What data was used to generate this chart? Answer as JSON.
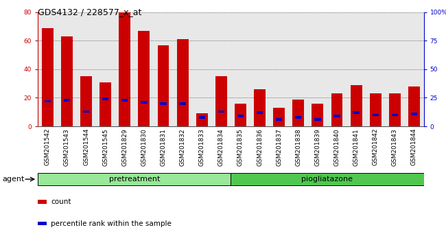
{
  "title": "GDS4132 / 228577_x_at",
  "samples": [
    "GSM201542",
    "GSM201543",
    "GSM201544",
    "GSM201545",
    "GSM201829",
    "GSM201830",
    "GSM201831",
    "GSM201832",
    "GSM201833",
    "GSM201834",
    "GSM201835",
    "GSM201836",
    "GSM201837",
    "GSM201838",
    "GSM201839",
    "GSM201840",
    "GSM201841",
    "GSM201842",
    "GSM201843",
    "GSM201844"
  ],
  "counts": [
    69,
    63,
    35,
    31,
    80,
    67,
    57,
    61,
    9,
    35,
    16,
    26,
    13,
    19,
    16,
    23,
    29,
    23,
    23,
    28
  ],
  "percentiles": [
    22,
    23,
    13,
    24,
    23,
    21,
    20,
    20,
    8,
    13,
    9,
    12,
    6,
    8,
    6,
    9,
    12,
    10,
    10,
    11
  ],
  "groups": [
    {
      "label": "pretreatment",
      "start": 0,
      "end": 10,
      "color": "#98e898"
    },
    {
      "label": "piogliatazone",
      "start": 10,
      "end": 20,
      "color": "#50c850"
    }
  ],
  "agent_label": "agent",
  "bar_color": "#cc0000",
  "percentile_color": "#0000cc",
  "ylim_left": [
    0,
    80
  ],
  "ylim_right": [
    0,
    100
  ],
  "yticks_left": [
    0,
    20,
    40,
    60,
    80
  ],
  "yticks_right": [
    0,
    25,
    50,
    75,
    100
  ],
  "bar_width": 0.6,
  "legend_items": [
    {
      "label": "count",
      "color": "#cc0000"
    },
    {
      "label": "percentile rank within the sample",
      "color": "#0000cc"
    }
  ],
  "plot_bg_color": "#e8e8e8",
  "fig_bg_color": "#ffffff",
  "grid_color": "#000000",
  "title_fontsize": 9,
  "tick_fontsize": 6.5,
  "label_fontsize": 8,
  "group_fontsize": 8
}
